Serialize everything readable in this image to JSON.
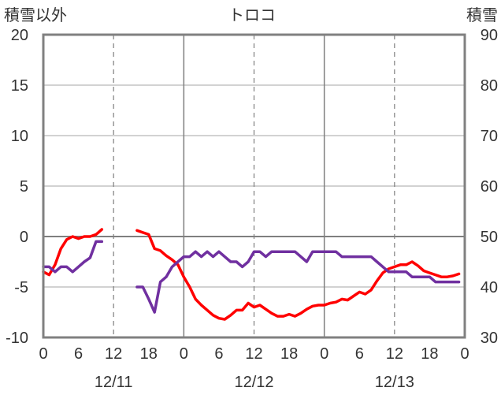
{
  "chart_data": {
    "type": "line",
    "title": "トロコ",
    "left_axis_label": "積雪以外",
    "right_axis_label": "積雪",
    "left_ylim": [
      -10,
      20
    ],
    "right_ylim": [
      30,
      90
    ],
    "left_ticks": [
      20,
      15,
      10,
      5,
      0,
      -5,
      -10
    ],
    "right_ticks": [
      90,
      80,
      70,
      60,
      50,
      40,
      30
    ],
    "xlim": [
      0,
      72
    ],
    "x_ticks": [
      {
        "x": 0,
        "label": "0"
      },
      {
        "x": 6,
        "label": "6"
      },
      {
        "x": 12,
        "label": "12"
      },
      {
        "x": 18,
        "label": "18"
      },
      {
        "x": 24,
        "label": "0"
      },
      {
        "x": 30,
        "label": "6"
      },
      {
        "x": 36,
        "label": "12"
      },
      {
        "x": 42,
        "label": "18"
      },
      {
        "x": 48,
        "label": "0"
      },
      {
        "x": 54,
        "label": "6"
      },
      {
        "x": 60,
        "label": "12"
      },
      {
        "x": 66,
        "label": "18"
      },
      {
        "x": 72,
        "label": "0"
      }
    ],
    "date_labels": [
      {
        "x": 12,
        "label": "12/11"
      },
      {
        "x": 36,
        "label": "12/12"
      },
      {
        "x": 60,
        "label": "12/13"
      }
    ],
    "series": [
      {
        "color": "#ff0000",
        "axis": "left",
        "segments": [
          [
            [
              0,
              -3.5
            ],
            [
              1,
              -3.8
            ],
            [
              2,
              -2.8
            ],
            [
              3,
              -1.2
            ],
            [
              4,
              -0.3
            ],
            [
              5,
              0
            ],
            [
              6,
              -0.2
            ],
            [
              7,
              0
            ],
            [
              8,
              0
            ],
            [
              9,
              0.2
            ],
            [
              10,
              0.7
            ]
          ],
          [
            [
              16,
              0.6
            ],
            [
              17,
              0.4
            ],
            [
              18,
              0.2
            ],
            [
              19,
              -1.2
            ],
            [
              20,
              -1.4
            ],
            [
              21,
              -1.9
            ],
            [
              22,
              -2.3
            ],
            [
              23,
              -2.8
            ],
            [
              24,
              -4.0
            ],
            [
              25,
              -5.0
            ],
            [
              26,
              -6.2
            ],
            [
              27,
              -6.8
            ],
            [
              28,
              -7.3
            ],
            [
              29,
              -7.8
            ],
            [
              30,
              -8.1
            ],
            [
              31,
              -8.2
            ],
            [
              32,
              -7.8
            ],
            [
              33,
              -7.3
            ],
            [
              34,
              -7.3
            ],
            [
              35,
              -6.6
            ],
            [
              36,
              -7.0
            ],
            [
              37,
              -6.8
            ],
            [
              38,
              -7.2
            ],
            [
              39,
              -7.6
            ],
            [
              40,
              -7.9
            ],
            [
              41,
              -7.9
            ],
            [
              42,
              -7.7
            ],
            [
              43,
              -7.9
            ],
            [
              44,
              -7.6
            ],
            [
              45,
              -7.2
            ],
            [
              46,
              -6.9
            ],
            [
              47,
              -6.8
            ],
            [
              48,
              -6.8
            ],
            [
              49,
              -6.6
            ],
            [
              50,
              -6.5
            ],
            [
              51,
              -6.2
            ],
            [
              52,
              -6.3
            ],
            [
              53,
              -5.9
            ],
            [
              54,
              -5.5
            ],
            [
              55,
              -5.7
            ],
            [
              56,
              -5.3
            ],
            [
              57,
              -4.4
            ],
            [
              58,
              -3.6
            ],
            [
              59,
              -3.2
            ],
            [
              60,
              -3.0
            ],
            [
              61,
              -2.8
            ],
            [
              62,
              -2.8
            ],
            [
              63,
              -2.5
            ],
            [
              64,
              -2.9
            ],
            [
              65,
              -3.4
            ],
            [
              66,
              -3.6
            ],
            [
              67,
              -3.8
            ],
            [
              68,
              -4.0
            ],
            [
              69,
              -4.0
            ],
            [
              70,
              -3.9
            ],
            [
              71,
              -3.7
            ]
          ]
        ]
      },
      {
        "color": "#7030a0",
        "axis": "left",
        "segments": [
          [
            [
              0,
              -3.0
            ],
            [
              1,
              -3.0
            ],
            [
              2,
              -3.5
            ],
            [
              3,
              -3.0
            ],
            [
              4,
              -3.0
            ],
            [
              5,
              -3.5
            ],
            [
              6,
              -3.0
            ],
            [
              7,
              -2.5
            ],
            [
              8,
              -2.1
            ],
            [
              9,
              -0.5
            ],
            [
              10,
              -0.5
            ]
          ],
          [
            [
              16,
              -5.0
            ],
            [
              17,
              -5.0
            ],
            [
              18,
              -6.2
            ],
            [
              19,
              -7.5
            ],
            [
              20,
              -4.5
            ],
            [
              21,
              -4.0
            ],
            [
              22,
              -3.0
            ],
            [
              23,
              -2.5
            ],
            [
              24,
              -2.0
            ],
            [
              25,
              -2.0
            ],
            [
              26,
              -1.5
            ],
            [
              27,
              -2.0
            ],
            [
              28,
              -1.5
            ],
            [
              29,
              -2.0
            ],
            [
              30,
              -1.5
            ],
            [
              31,
              -2.0
            ],
            [
              32,
              -2.5
            ],
            [
              33,
              -2.5
            ],
            [
              34,
              -3.0
            ],
            [
              35,
              -2.5
            ],
            [
              36,
              -1.5
            ],
            [
              37,
              -1.5
            ],
            [
              38,
              -2.0
            ],
            [
              39,
              -1.5
            ],
            [
              40,
              -1.5
            ],
            [
              41,
              -1.5
            ],
            [
              42,
              -1.5
            ],
            [
              43,
              -1.5
            ],
            [
              44,
              -2.0
            ],
            [
              45,
              -2.5
            ],
            [
              46,
              -1.5
            ],
            [
              47,
              -1.5
            ],
            [
              48,
              -1.5
            ],
            [
              49,
              -1.5
            ],
            [
              50,
              -1.5
            ],
            [
              51,
              -2.0
            ],
            [
              52,
              -2.0
            ],
            [
              53,
              -2.0
            ],
            [
              54,
              -2.0
            ],
            [
              55,
              -2.0
            ],
            [
              56,
              -2.0
            ],
            [
              57,
              -2.5
            ],
            [
              58,
              -3.0
            ],
            [
              59,
              -3.5
            ],
            [
              60,
              -3.5
            ],
            [
              61,
              -3.5
            ],
            [
              62,
              -3.5
            ],
            [
              63,
              -4.0
            ],
            [
              64,
              -4.0
            ],
            [
              65,
              -4.0
            ],
            [
              66,
              -4.0
            ],
            [
              67,
              -4.5
            ],
            [
              68,
              -4.5
            ],
            [
              69,
              -4.5
            ],
            [
              70,
              -4.5
            ],
            [
              71,
              -4.5
            ]
          ]
        ]
      }
    ]
  }
}
